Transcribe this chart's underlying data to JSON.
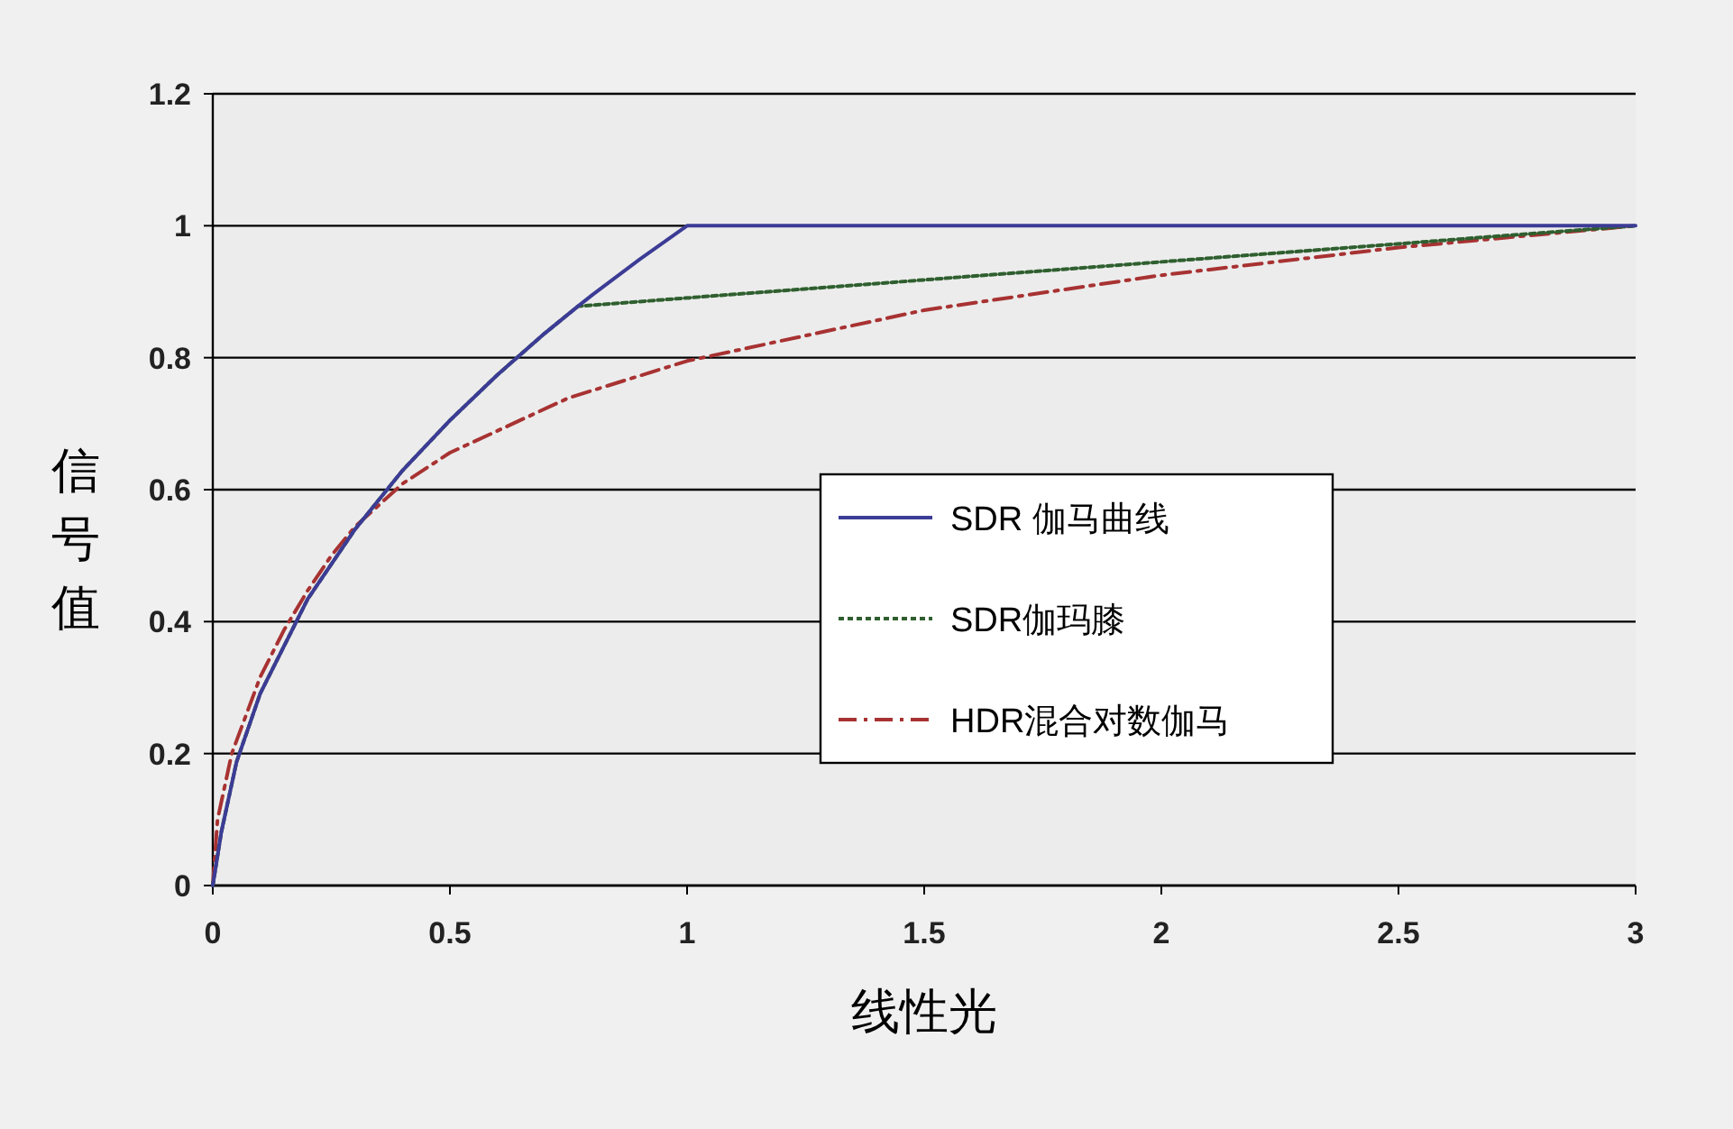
{
  "chart_data": {
    "type": "line",
    "xlabel": "线性光",
    "ylabel": "信号值",
    "xlim": [
      0,
      3
    ],
    "ylim": [
      0,
      1.2
    ],
    "xticks": [
      0,
      0.5,
      1,
      1.5,
      2,
      2.5,
      3
    ],
    "yticks": [
      0,
      0.2,
      0.4,
      0.6,
      0.8,
      1,
      1.2
    ],
    "grid": "y",
    "legend": "right",
    "marker": "none",
    "series": [
      {
        "name": "SDR 伽马曲线",
        "color": "#3c3c96",
        "line_style": "solid",
        "x": [
          0,
          0.01,
          0.018,
          0.05,
          0.1,
          0.2,
          0.3,
          0.4,
          0.5,
          0.6,
          0.7,
          0.77,
          0.8,
          0.9,
          1,
          3
        ],
        "values": [
          0,
          0.045,
          0.081,
          0.187,
          0.291,
          0.434,
          0.54,
          0.629,
          0.705,
          0.774,
          0.837,
          0.878,
          0.895,
          0.949,
          1,
          1
        ]
      },
      {
        "name": "SDR伽玛膝",
        "color": "#2f5f2f",
        "line_style": "dotted",
        "x": [
          0,
          0.01,
          0.018,
          0.05,
          0.1,
          0.2,
          0.3,
          0.4,
          0.5,
          0.6,
          0.7,
          0.77,
          3
        ],
        "values": [
          0,
          0.045,
          0.081,
          0.187,
          0.291,
          0.434,
          0.54,
          0.629,
          0.705,
          0.774,
          0.837,
          0.878,
          1
        ]
      },
      {
        "name": "HDR混合对数伽马",
        "color": "#a83232",
        "line_style": "dashed",
        "x": [
          0,
          0.01,
          0.04,
          0.1,
          0.15,
          0.2,
          0.25,
          0.3,
          0.4,
          0.5,
          0.75,
          1,
          1.5,
          2,
          2.5,
          3
        ],
        "values": [
          0,
          0.1,
          0.2,
          0.316,
          0.387,
          0.447,
          0.5,
          0.544,
          0.609,
          0.656,
          0.739,
          0.795,
          0.872,
          0.925,
          0.967,
          1
        ]
      }
    ]
  }
}
